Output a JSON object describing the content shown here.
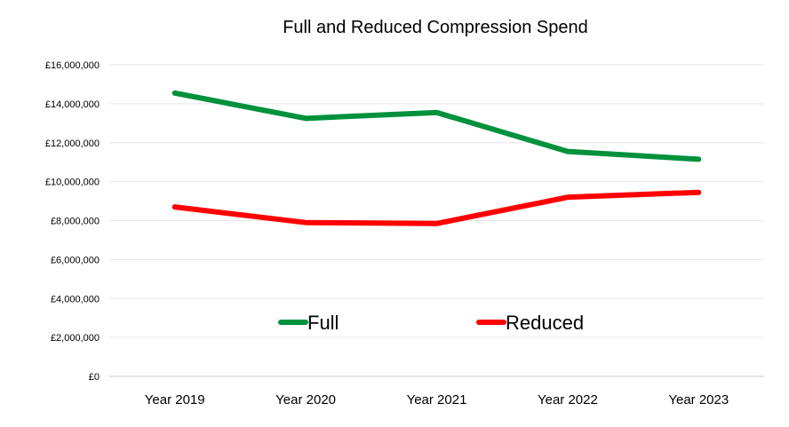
{
  "chart_data": {
    "type": "line",
    "title": "Full and Reduced Compression Spend",
    "xlabel": "",
    "ylabel": "",
    "categories": [
      "Year 2019",
      "Year 2020",
      "Year 2021",
      "Year 2022",
      "Year 2023"
    ],
    "ylim": [
      0,
      16000000
    ],
    "yticks": [
      0,
      2000000,
      4000000,
      6000000,
      8000000,
      10000000,
      12000000,
      14000000,
      16000000
    ],
    "ytick_labels": [
      "£0",
      "£2,000,000",
      "£4,000,000",
      "£6,000,000",
      "£8,000,000",
      "£10,000,000",
      "£12,000,000",
      "£14,000,000",
      "£16,000,000"
    ],
    "grid": true,
    "legend_position": "inside-bottom-center",
    "series": [
      {
        "name": "Full",
        "color": "#00913c",
        "values": [
          14550000,
          13250000,
          13550000,
          11550000,
          11150000
        ]
      },
      {
        "name": "Reduced",
        "color": "#ff0000",
        "values": [
          8700000,
          7900000,
          7850000,
          9200000,
          9450000
        ]
      }
    ]
  }
}
